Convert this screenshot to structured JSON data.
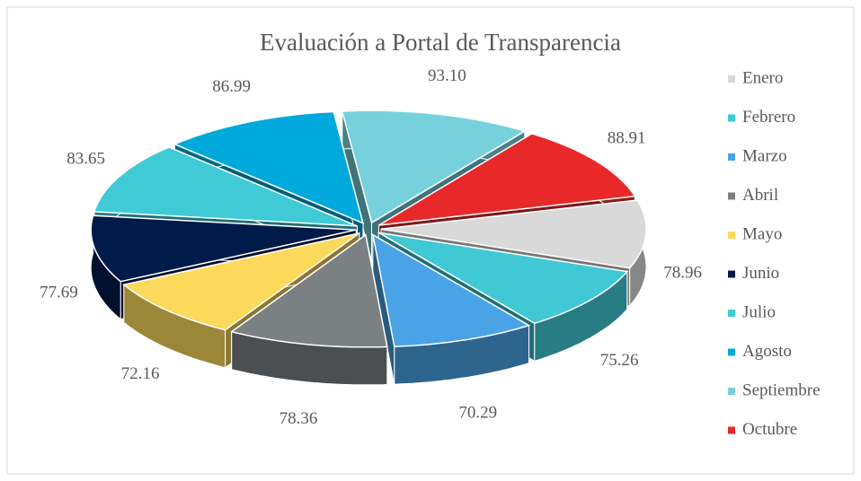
{
  "chart_data": {
    "type": "pie3d",
    "title": "Evaluación a Portal de Transparencia",
    "categories": [
      "Enero",
      "Febrero",
      "Marzo",
      "Abril",
      "Mayo",
      "Junio",
      "Julio",
      "Agosto",
      "Septiembre",
      "Octubre"
    ],
    "values": [
      78.96,
      75.26,
      70.29,
      78.36,
      72.16,
      77.69,
      83.65,
      86.99,
      93.1,
      88.91
    ],
    "value_labels": [
      "78.96",
      "75.26",
      "70.29",
      "78.36",
      "72.16",
      "77.69",
      "83.65",
      "86.99",
      "93.10",
      "88.91"
    ],
    "colors": [
      "#d9d9d9",
      "#40c8d4",
      "#4aa3e6",
      "#7b8082",
      "#fcd95a",
      "#001a4a",
      "#3fcad6",
      "#00a9db",
      "#76d1dc",
      "#e9282a"
    ],
    "legend": "right"
  }
}
